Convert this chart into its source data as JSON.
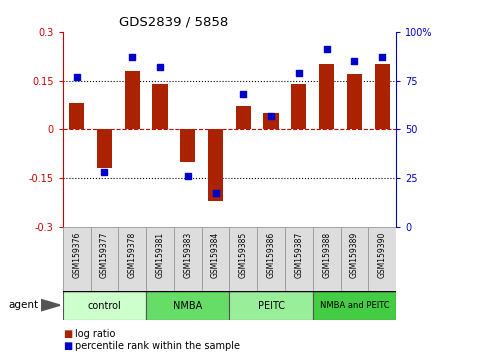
{
  "title": "GDS2839 / 5858",
  "samples": [
    "GSM159376",
    "GSM159377",
    "GSM159378",
    "GSM159381",
    "GSM159383",
    "GSM159384",
    "GSM159385",
    "GSM159386",
    "GSM159387",
    "GSM159388",
    "GSM159389",
    "GSM159390"
  ],
  "log_ratio": [
    0.08,
    -0.12,
    0.18,
    0.14,
    -0.1,
    -0.22,
    0.07,
    0.05,
    0.14,
    0.2,
    0.17,
    0.2
  ],
  "percentile_rank": [
    77,
    28,
    87,
    82,
    26,
    17,
    68,
    57,
    79,
    91,
    85,
    87
  ],
  "groups": [
    {
      "label": "control",
      "start": 0,
      "end": 3,
      "color": "#ccffcc"
    },
    {
      "label": "NMBA",
      "start": 3,
      "end": 6,
      "color": "#66dd66"
    },
    {
      "label": "PEITC",
      "start": 6,
      "end": 9,
      "color": "#99ee99"
    },
    {
      "label": "NMBA and PEITC",
      "start": 9,
      "end": 12,
      "color": "#44cc44"
    }
  ],
  "bar_color": "#aa2200",
  "dot_color": "#0000cc",
  "ylim_left": [
    -0.3,
    0.3
  ],
  "ylim_right": [
    0,
    100
  ],
  "yticks_left": [
    -0.3,
    -0.15,
    0,
    0.15,
    0.3
  ],
  "yticks_right": [
    0,
    25,
    50,
    75,
    100
  ],
  "hlines_dotted": [
    -0.15,
    0.15
  ],
  "hline_zero_color": "#cc0000",
  "left_axis_color": "#cc0000",
  "right_axis_color": "#0000cc",
  "sample_box_color": "#dddddd",
  "sample_box_edge": "#999999",
  "fig_width": 4.83,
  "fig_height": 3.54,
  "dpi": 100
}
